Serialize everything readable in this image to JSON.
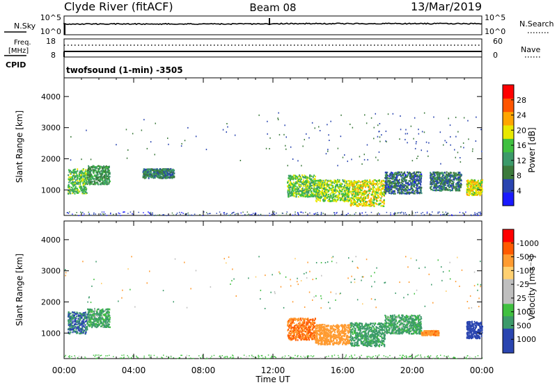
{
  "header": {
    "station": "Clyde River (fitACF)",
    "beam": "Beam 08",
    "date": "13/Mar/2019"
  },
  "noise_panel": {
    "left_label": "N.Sky",
    "left_ticks": [
      "10^5",
      "10^0"
    ],
    "right_ticks": [
      "10^5",
      "10^0"
    ],
    "right_label": "N.Search"
  },
  "freq_panel": {
    "left_label_line1": "Freq.",
    "left_label_line2": "[MHz]",
    "left_ticks": [
      "18",
      "8"
    ],
    "right_ticks": [
      "60",
      "0"
    ],
    "right_label": "Nave",
    "cpid_label": "CPID",
    "program": "twofsound (1-min) -3505"
  },
  "colors": {
    "power": [
      "#1a1aff",
      "#2a45b0",
      "#3c7a3c",
      "#3c9a6a",
      "#40c040",
      "#e8e800",
      "#ffa500",
      "#ff5500",
      "#ff0000"
    ],
    "velocity": [
      "#ff0000",
      "#ff5a00",
      "#ff9b30",
      "#ffd070",
      "#bfbfbf",
      "#bfbfbf",
      "#40c040",
      "#3c9a6a",
      "#2a45b0",
      "#2a45b0"
    ]
  },
  "chart_data": [
    {
      "type": "heatmap",
      "name": "power",
      "ylabel": "Slant Range [km]",
      "xlabel": "Time UT",
      "x_ticks": [
        "00:00",
        "04:00",
        "08:00",
        "12:00",
        "16:00",
        "20:00",
        "00:00"
      ],
      "x_range_hours": [
        0,
        24
      ],
      "ylim": [
        180,
        4600
      ],
      "y_ticks": [
        1000,
        2000,
        3000,
        4000
      ],
      "colorbar": {
        "label": "Power [dB]",
        "ticks": [
          "4",
          "8",
          "12",
          "16",
          "20",
          "24",
          "28"
        ],
        "range": [
          0,
          30
        ]
      },
      "regions": [
        {
          "t": [
            0.2,
            1.3
          ],
          "r": [
            900,
            1700
          ],
          "value": 14
        },
        {
          "t": [
            1.3,
            2.6
          ],
          "r": [
            1200,
            1800
          ],
          "value": 11
        },
        {
          "t": [
            4.5,
            6.3
          ],
          "r": [
            1400,
            1700
          ],
          "value": 9
        },
        {
          "t": [
            12.8,
            14.4
          ],
          "r": [
            800,
            1500
          ],
          "value": 15
        },
        {
          "t": [
            14.4,
            16.4
          ],
          "r": [
            650,
            1350
          ],
          "value": 16
        },
        {
          "t": [
            16.4,
            18.4
          ],
          "r": [
            500,
            1350
          ],
          "value": 18
        },
        {
          "t": [
            18.4,
            20.5
          ],
          "r": [
            900,
            1600
          ],
          "value": 7
        },
        {
          "t": [
            21.0,
            22.8
          ],
          "r": [
            1000,
            1600
          ],
          "value": 8
        },
        {
          "t": [
            23.1,
            24.0
          ],
          "r": [
            850,
            1350
          ],
          "value": 19
        }
      ]
    },
    {
      "type": "heatmap",
      "name": "velocity",
      "ylabel": "Slant Range [km]",
      "xlabel": "Time UT",
      "x_ticks": [
        "00:00",
        "04:00",
        "08:00",
        "12:00",
        "16:00",
        "20:00",
        "00:00"
      ],
      "x_range_hours": [
        0,
        24
      ],
      "ylim": [
        180,
        4600
      ],
      "y_ticks": [
        1000,
        2000,
        3000,
        4000
      ],
      "colorbar": {
        "label": "Velocity [m s⁻¹]",
        "ticks": [
          "1000",
          "500",
          "100",
          "25",
          "-25",
          "-100",
          "-500",
          "-1000"
        ]
      },
      "regions": [
        {
          "t": [
            0.2,
            1.3
          ],
          "r": [
            1000,
            1700
          ],
          "value": 500
        },
        {
          "t": [
            1.3,
            2.6
          ],
          "r": [
            1200,
            1800
          ],
          "value": 150
        },
        {
          "t": [
            12.8,
            14.4
          ],
          "r": [
            800,
            1500
          ],
          "value": -500
        },
        {
          "t": [
            14.4,
            16.4
          ],
          "r": [
            650,
            1300
          ],
          "value": -300
        },
        {
          "t": [
            16.4,
            18.4
          ],
          "r": [
            600,
            1350
          ],
          "value": 200
        },
        {
          "t": [
            18.4,
            20.5
          ],
          "r": [
            1000,
            1600
          ],
          "value": 150
        },
        {
          "t": [
            20.5,
            21.5
          ],
          "r": [
            950,
            1100
          ],
          "value": -400
        },
        {
          "t": [
            23.1,
            24.0
          ],
          "r": [
            850,
            1400
          ],
          "value": 700
        }
      ]
    }
  ]
}
